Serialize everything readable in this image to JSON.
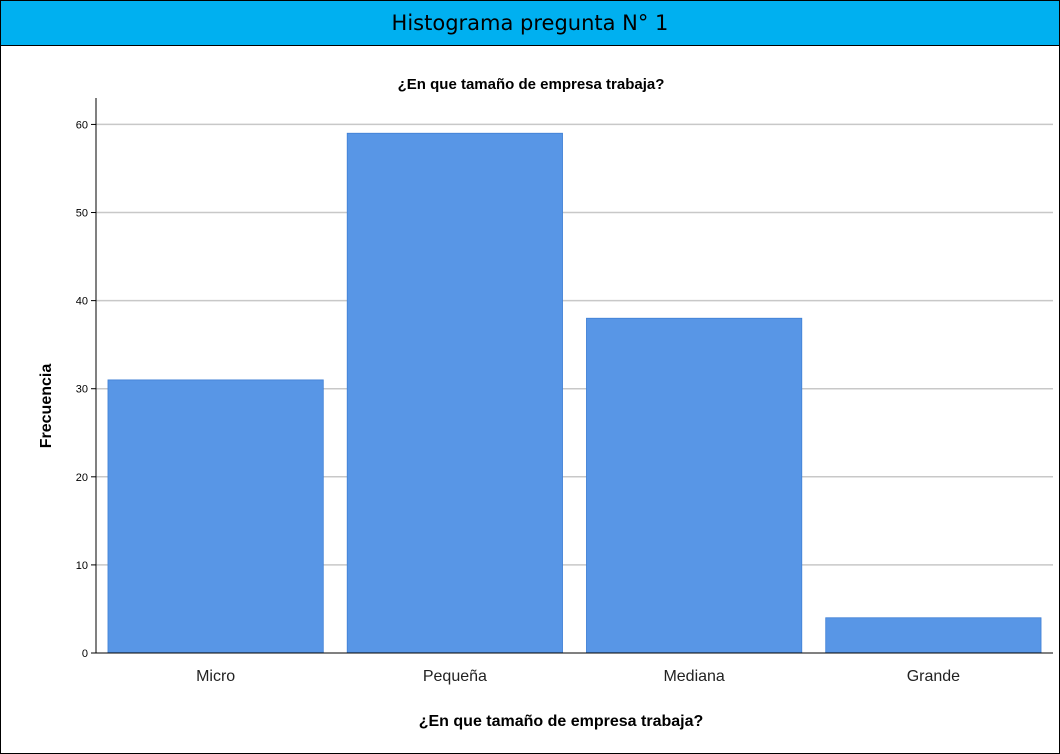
{
  "header": {
    "title": "Histograma pregunta N° 1"
  },
  "chart_data": {
    "type": "bar",
    "title": "¿En que tamaño de empresa trabaja?",
    "xlabel": "¿En que tamaño de empresa trabaja?",
    "ylabel": "Frecuencia",
    "categories": [
      "Micro",
      "Pequeña",
      "Mediana",
      "Grande"
    ],
    "values": [
      31,
      59,
      38,
      4
    ],
    "ylim": [
      0,
      63
    ],
    "yticks": [
      0,
      10,
      20,
      30,
      40,
      50,
      60
    ],
    "grid": true,
    "bar_color": "#5896e6"
  }
}
